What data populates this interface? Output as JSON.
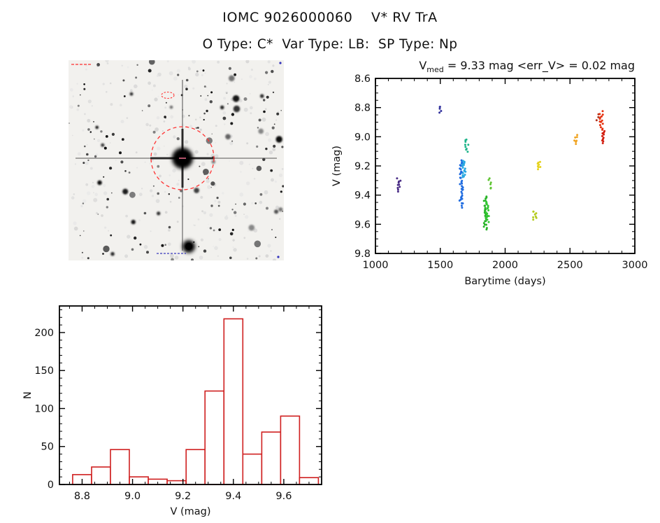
{
  "header": {
    "title": "IOMC 9026000060    V* RV TrA",
    "subtitle": "O Type: C*  Var Type: LB:  SP Type: Np"
  },
  "finder_chart": {
    "target_circle_color": "#ff3333",
    "secondary_marker_color": "#ff3333",
    "annotation_color": "#3333bb"
  },
  "chart_data": [
    {
      "id": "lightcurve",
      "type": "scatter",
      "title_parts": {
        "base": "V",
        "sub": "med",
        "rest": " = 9.33 mag <err_V> = 0.02 mag"
      },
      "xlabel": "Barytime (days)",
      "ylabel": "V (mag)",
      "xlim": [
        1000,
        3000
      ],
      "ylim": [
        8.6,
        9.8
      ],
      "y_increases_down": true,
      "xticks": [
        1000,
        1500,
        2000,
        2500,
        3000
      ],
      "yticks": [
        8.6,
        8.8,
        9.0,
        9.2,
        9.4,
        9.6,
        9.8
      ],
      "x_minor_step": 100,
      "y_minor_step": 0.05,
      "clusters": [
        {
          "x": 1180,
          "y_min": 9.29,
          "y_max": 9.37,
          "n": 10,
          "color": "#4a2d86"
        },
        {
          "x": 1505,
          "y_min": 8.79,
          "y_max": 8.83,
          "n": 5,
          "color": "#34349e"
        },
        {
          "x": 1662,
          "y_min": 9.16,
          "y_max": 9.48,
          "n": 36,
          "color": "#1e6be0"
        },
        {
          "x": 1682,
          "y_min": 9.16,
          "y_max": 9.28,
          "n": 16,
          "color": "#27a7e0"
        },
        {
          "x": 1703,
          "y_min": 9.02,
          "y_max": 9.1,
          "n": 9,
          "color": "#1db489"
        },
        {
          "x": 1848,
          "y_min": 9.41,
          "y_max": 9.63,
          "n": 28,
          "color": "#28b428"
        },
        {
          "x": 1862,
          "y_min": 9.44,
          "y_max": 9.58,
          "n": 14,
          "color": "#32c832"
        },
        {
          "x": 1879,
          "y_min": 9.28,
          "y_max": 9.36,
          "n": 6,
          "color": "#5ec431"
        },
        {
          "x": 2228,
          "y_min": 9.51,
          "y_max": 9.57,
          "n": 8,
          "color": "#b4cc1e"
        },
        {
          "x": 2262,
          "y_min": 9.17,
          "y_max": 9.22,
          "n": 8,
          "color": "#e6d31e"
        },
        {
          "x": 2545,
          "y_min": 8.99,
          "y_max": 9.05,
          "n": 7,
          "color": "#f0a422"
        },
        {
          "x": 2712,
          "y_min": 8.85,
          "y_max": 8.89,
          "n": 3,
          "color": "#b03018"
        },
        {
          "x": 2742,
          "y_min": 8.83,
          "y_max": 8.95,
          "n": 14,
          "color": "#e6300e"
        },
        {
          "x": 2756,
          "y_min": 8.96,
          "y_max": 9.04,
          "n": 10,
          "color": "#d21e10"
        }
      ]
    },
    {
      "id": "histogram",
      "type": "bar",
      "xlabel": "V (mag)",
      "ylabel": "N",
      "bin_start": 8.7625,
      "bin_width": 0.075,
      "values": [
        13,
        23,
        46,
        10,
        7,
        5,
        46,
        123,
        218,
        40,
        69,
        90,
        9
      ],
      "xlim": [
        8.71,
        9.75
      ],
      "ylim": [
        0,
        235
      ],
      "xticks": [
        8.8,
        9.0,
        9.2,
        9.4,
        9.6
      ],
      "yticks": [
        0,
        50,
        100,
        150,
        200
      ],
      "x_minor_step": 0.05,
      "y_minor_step": 10,
      "color": "#cf1f1f"
    }
  ]
}
